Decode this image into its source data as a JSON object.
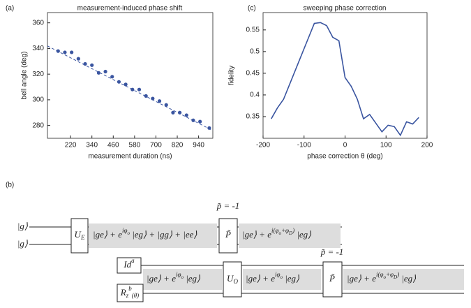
{
  "chart_data": [
    {
      "type": "scatter",
      "panel": "(a)",
      "title": "measurement-induced phase shift",
      "x_label": "measurement duration (ns)",
      "y_label": "bell angle (deg)",
      "xlim": [
        90,
        1020
      ],
      "ylim": [
        270,
        368
      ],
      "xticks": [
        220,
        340,
        460,
        580,
        700,
        820,
        940
      ],
      "yticks": [
        280,
        300,
        320,
        340,
        360
      ],
      "color": "#3a55a0",
      "x": [
        150,
        188,
        226,
        264,
        302,
        340,
        378,
        416,
        454,
        492,
        530,
        568,
        606,
        644,
        682,
        720,
        758,
        796,
        834,
        872,
        910,
        948,
        1000
      ],
      "values": [
        338,
        337,
        337,
        332,
        328,
        327,
        321,
        322,
        318,
        314,
        312,
        308,
        308,
        303,
        301,
        299,
        296,
        290,
        290,
        288,
        284,
        283,
        278
      ],
      "fit": {
        "x": [
          90,
          1020
        ],
        "y": [
          342,
          276
        ]
      }
    },
    {
      "type": "line",
      "panel": "(c)",
      "title": "sweeping phase correction",
      "x_label": "phase correction θ  (deg)",
      "y_label": "fidelity",
      "xlim": [
        -200,
        200
      ],
      "ylim": [
        0.3,
        0.59
      ],
      "xticks": [
        -200,
        -100,
        0,
        100,
        200
      ],
      "yticks": [
        0.35,
        0.4,
        0.45,
        0.5,
        0.55
      ],
      "color": "#3a55a0",
      "x": [
        -180,
        -165,
        -150,
        -135,
        -120,
        -105,
        -90,
        -75,
        -60,
        -45,
        -30,
        -15,
        0,
        15,
        30,
        45,
        60,
        75,
        90,
        105,
        120,
        135,
        150,
        165,
        180
      ],
      "values": [
        0.345,
        0.37,
        0.39,
        0.425,
        0.46,
        0.495,
        0.53,
        0.565,
        0.567,
        0.56,
        0.533,
        0.525,
        0.44,
        0.42,
        0.39,
        0.345,
        0.355,
        0.335,
        0.315,
        0.33,
        0.327,
        0.307,
        0.338,
        0.333,
        0.348
      ]
    }
  ],
  "diagram": {
    "label": "(b)",
    "kets": [
      "|g⟩",
      "|g⟩"
    ],
    "items": [
      [
        [
          "U"
        ],
        [
          "E",
          "sub"
        ]
      ],
      [
        [
          "|ge⟩ + e"
        ],
        [
          "iφ",
          "sup"
        ],
        [
          "o",
          "supsub"
        ],
        [
          " |eg⟩ + |gg⟩ + |ee⟩"
        ]
      ],
      [
        [
          "P̃"
        ]
      ],
      [
        [
          "p̃ = -1"
        ]
      ],
      [
        [
          "|ge⟩ + e"
        ],
        [
          "i(φ",
          "sup"
        ],
        [
          "o",
          "supsub"
        ],
        [
          "+φ",
          "sup"
        ],
        [
          "D",
          "supsub"
        ],
        [
          ")",
          "sup"
        ],
        [
          " |eg⟩"
        ]
      ],
      [
        [
          "Id"
        ],
        [
          "a",
          "sup"
        ]
      ],
      [
        [
          "R"
        ],
        [
          "z",
          "sub"
        ],
        [
          "b",
          "sup"
        ],
        [
          "(θ)",
          "sub"
        ]
      ],
      [
        [
          "|ge⟩ + e"
        ],
        [
          "iφ",
          "sup"
        ],
        [
          "o",
          "supsub"
        ],
        [
          " |eg⟩"
        ]
      ],
      [
        [
          "U"
        ],
        [
          "O",
          "sub"
        ]
      ],
      [
        [
          "|ge⟩ + e"
        ],
        [
          "iφ",
          "sup"
        ],
        [
          "o",
          "supsub"
        ],
        [
          " |eg⟩"
        ]
      ],
      [
        [
          "P̃"
        ]
      ],
      [
        [
          "p̃ = -1"
        ]
      ],
      [
        [
          "|ge⟩ + e"
        ],
        [
          "i(φ",
          "sup"
        ],
        [
          "o",
          "supsub"
        ],
        [
          "+φ",
          "sup"
        ],
        [
          "D",
          "supsub"
        ],
        [
          ")",
          "sup"
        ],
        [
          " |eg⟩"
        ]
      ]
    ]
  }
}
